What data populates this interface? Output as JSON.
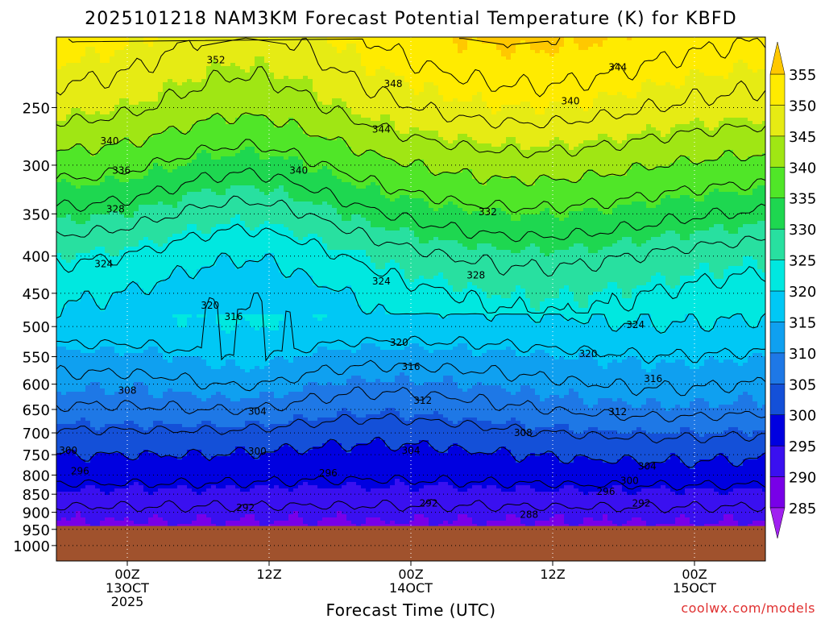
{
  "chart_data": {
    "type": "heatmap",
    "title": "2025101218 NAM3KM Forecast Potential Temperature (K) for KBFD",
    "xlabel": "Forecast Time (UTC)",
    "ylabel": "",
    "credit": "coolwx.com/models",
    "x_ticks": [
      {
        "hour": 6,
        "lines": [
          "00Z",
          "13OCT",
          "2025"
        ]
      },
      {
        "hour": 18,
        "lines": [
          "12Z"
        ]
      },
      {
        "hour": 30,
        "lines": [
          "00Z",
          "14OCT"
        ]
      },
      {
        "hour": 42,
        "lines": [
          "12Z"
        ]
      },
      {
        "hour": 54,
        "lines": [
          "00Z",
          "15OCT"
        ]
      }
    ],
    "xlim": [
      0,
      60
    ],
    "y_ticks": [
      "250",
      "300",
      "350",
      "400",
      "450",
      "500",
      "550",
      "600",
      "650",
      "700",
      "750",
      "800",
      "850",
      "900",
      "950",
      "1000"
    ],
    "ylim": [
      200,
      1050
    ],
    "ground_pressure": 940,
    "colorbar": {
      "levels": [
        280,
        285,
        290,
        295,
        300,
        305,
        310,
        315,
        320,
        325,
        330,
        335,
        340,
        345,
        350,
        355,
        360
      ],
      "labels": [
        "285",
        "290",
        "295",
        "300",
        "305",
        "310",
        "315",
        "320",
        "325",
        "330",
        "335",
        "340",
        "345",
        "350",
        "355"
      ],
      "colors": [
        "#a020f0",
        "#7800e8",
        "#3a10f0",
        "#0000e0",
        "#1450d8",
        "#1e78e6",
        "#0fa0f0",
        "#00c8f5",
        "#00e8e0",
        "#28e0a0",
        "#1ed750",
        "#50e628",
        "#a0e614",
        "#e6eb14",
        "#ffeb00",
        "#ffc800"
      ]
    },
    "contour_interval": 4,
    "contour_range": [
      284,
      356
    ],
    "contour_labels": [
      {
        "text": "352",
        "hour": 13.5,
        "p": 215
      },
      {
        "text": "348",
        "hour": 28.5,
        "p": 232
      },
      {
        "text": "344",
        "hour": 47.5,
        "p": 220
      },
      {
        "text": "340",
        "hour": 43.5,
        "p": 245
      },
      {
        "text": "344",
        "hour": 27.5,
        "p": 268
      },
      {
        "text": "340",
        "hour": 4.5,
        "p": 278
      },
      {
        "text": "336",
        "hour": 5.5,
        "p": 305
      },
      {
        "text": "340",
        "hour": 20.5,
        "p": 305
      },
      {
        "text": "328",
        "hour": 5.0,
        "p": 345
      },
      {
        "text": "332",
        "hour": 36.5,
        "p": 348
      },
      {
        "text": "324",
        "hour": 4.0,
        "p": 410
      },
      {
        "text": "328",
        "hour": 35.5,
        "p": 425
      },
      {
        "text": "324",
        "hour": 27.5,
        "p": 433
      },
      {
        "text": "320",
        "hour": 13.0,
        "p": 468
      },
      {
        "text": "316",
        "hour": 15.0,
        "p": 485
      },
      {
        "text": "324",
        "hour": 49.0,
        "p": 497
      },
      {
        "text": "320",
        "hour": 29.0,
        "p": 526
      },
      {
        "text": "320",
        "hour": 45.0,
        "p": 545
      },
      {
        "text": "316",
        "hour": 30.0,
        "p": 568
      },
      {
        "text": "316",
        "hour": 50.5,
        "p": 590
      },
      {
        "text": "308",
        "hour": 6.0,
        "p": 612
      },
      {
        "text": "312",
        "hour": 31.0,
        "p": 632
      },
      {
        "text": "304",
        "hour": 17.0,
        "p": 654
      },
      {
        "text": "312",
        "hour": 47.5,
        "p": 655
      },
      {
        "text": "308",
        "hour": 39.5,
        "p": 700
      },
      {
        "text": "300",
        "hour": 1.0,
        "p": 740
      },
      {
        "text": "304",
        "hour": 30.0,
        "p": 740
      },
      {
        "text": "300",
        "hour": 17.0,
        "p": 742
      },
      {
        "text": "304",
        "hour": 50.0,
        "p": 778
      },
      {
        "text": "296",
        "hour": 2.0,
        "p": 790
      },
      {
        "text": "296",
        "hour": 23.0,
        "p": 795
      },
      {
        "text": "300",
        "hour": 48.5,
        "p": 815
      },
      {
        "text": "296",
        "hour": 46.5,
        "p": 843
      },
      {
        "text": "292",
        "hour": 31.5,
        "p": 875
      },
      {
        "text": "292",
        "hour": 49.5,
        "p": 875
      },
      {
        "text": "292",
        "hour": 16.0,
        "p": 887
      },
      {
        "text": "288",
        "hour": 40.0,
        "p": 907
      }
    ]
  }
}
